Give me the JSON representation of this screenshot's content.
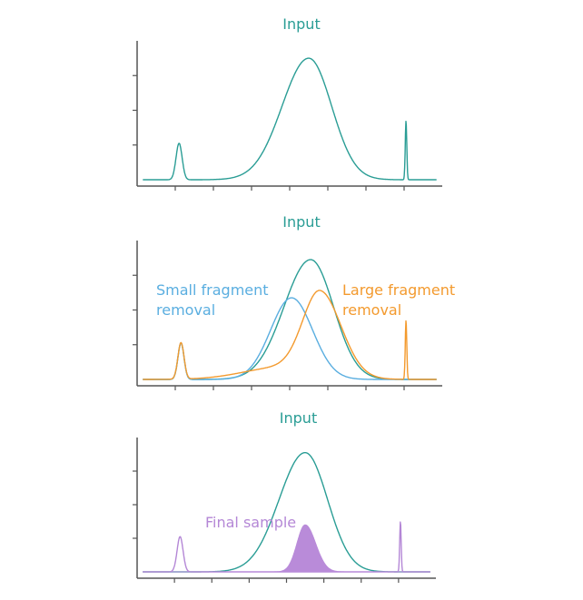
{
  "colors": {
    "input": "#2a9d95",
    "small_removal": "#5aaee0",
    "large_removal": "#f39a2e",
    "final": "#b487d6",
    "final_fill": "#b98bd9",
    "axis": "#555555"
  },
  "chart_data": [
    {
      "type": "line",
      "title": "Input",
      "xlabel": "",
      "ylabel": "",
      "xlim": [
        0,
        8
      ],
      "ylim": [
        0,
        4
      ],
      "x_ticks": [
        1,
        2,
        3,
        4,
        5,
        6,
        7
      ],
      "y_ticks": [
        1,
        2,
        3
      ],
      "grid": false,
      "series": [
        {
          "name": "Input",
          "role": "input",
          "components": [
            {
              "amp": 1.05,
              "mu": 1.1,
              "sigma": 0.08
            },
            {
              "amp": 3.5,
              "mu": 4.5,
              "sigma": 0.7,
              "sigma_right": 0.6
            },
            {
              "amp": 1.7,
              "mu": 7.05,
              "sigma": 0.02
            }
          ]
        }
      ],
      "annotations": []
    },
    {
      "type": "line",
      "title": "Input",
      "xlabel": "",
      "ylabel": "",
      "xlim": [
        0,
        8
      ],
      "ylim": [
        0,
        4
      ],
      "x_ticks": [
        1,
        2,
        3,
        4,
        5,
        6,
        7
      ],
      "y_ticks": [
        1,
        2,
        3
      ],
      "grid": false,
      "series": [
        {
          "name": "Input",
          "role": "input",
          "components": [
            {
              "amp": 1.05,
              "mu": 1.15,
              "sigma": 0.08
            },
            {
              "amp": 3.45,
              "mu": 4.55,
              "sigma": 0.7,
              "sigma_right": 0.6
            }
          ]
        },
        {
          "name": "Small fragment removal",
          "role": "small_removal",
          "components": [
            {
              "amp": 1.05,
              "mu": 1.15,
              "sigma": 0.08
            },
            {
              "amp": 2.35,
              "mu": 4.05,
              "sigma": 0.55
            }
          ]
        },
        {
          "name": "Large fragment removal",
          "role": "large_removal",
          "components": [
            {
              "amp": 1.05,
              "mu": 1.15,
              "sigma": 0.08
            },
            {
              "amp": 2.35,
              "mu": 4.8,
              "sigma": 0.45,
              "sigma_right": 0.55
            },
            {
              "amp": 0.35,
              "mu": 3.8,
              "sigma": 1.0
            },
            {
              "amp": 1.7,
              "mu": 7.05,
              "sigma": 0.02
            }
          ]
        }
      ],
      "annotations": [
        {
          "text_lines": [
            "Small fragment",
            "removal"
          ],
          "role": "small_removal"
        },
        {
          "text_lines": [
            "Large fragment",
            "removal"
          ],
          "role": "large_removal"
        }
      ]
    },
    {
      "type": "area",
      "title": "Input",
      "xlabel": "",
      "ylabel": "",
      "xlim": [
        0,
        8
      ],
      "ylim": [
        0,
        4
      ],
      "x_ticks": [
        1,
        2,
        3,
        4,
        5,
        6,
        7
      ],
      "y_ticks": [
        1,
        2,
        3
      ],
      "grid": false,
      "series": [
        {
          "name": "Input",
          "role": "input",
          "components": [
            {
              "amp": 3.55,
              "mu": 4.5,
              "sigma": 0.7,
              "sigma_right": 0.6
            }
          ]
        },
        {
          "name": "Final sample",
          "role": "final",
          "components": [
            {
              "amp": 1.05,
              "mu": 1.15,
              "sigma": 0.08
            },
            {
              "amp": 1.5,
              "mu": 7.05,
              "sigma": 0.02
            }
          ]
        },
        {
          "name": "Final sample fill",
          "role": "final_fill",
          "filled": true,
          "components": [
            {
              "amp": 1.4,
              "mu": 4.5,
              "sigma": 0.22,
              "sigma_right": 0.28
            }
          ]
        }
      ],
      "annotations": [
        {
          "text_lines": [
            "Final sample"
          ],
          "role": "final"
        }
      ]
    }
  ]
}
